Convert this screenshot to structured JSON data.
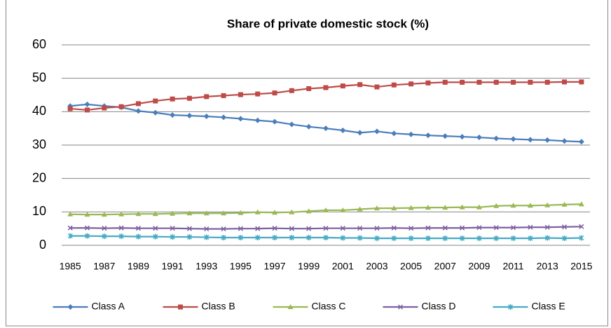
{
  "chart_data": {
    "type": "line",
    "title": "Share of private domestic stock (%)",
    "x": [
      1985,
      1986,
      1987,
      1988,
      1989,
      1990,
      1991,
      1992,
      1993,
      1994,
      1995,
      1996,
      1997,
      1998,
      1999,
      2000,
      2001,
      2002,
      2003,
      2004,
      2005,
      2006,
      2007,
      2008,
      2009,
      2010,
      2011,
      2012,
      2013,
      2014,
      2015
    ],
    "xlim": [
      1984.5,
      2015.5
    ],
    "xticks": [
      1985,
      1987,
      1989,
      1991,
      1993,
      1995,
      1997,
      1999,
      2001,
      2003,
      2005,
      2007,
      2009,
      2011,
      2013,
      2015
    ],
    "ylim": [
      0,
      60
    ],
    "yticks": [
      0,
      10,
      20,
      30,
      40,
      50,
      60
    ],
    "grid": true,
    "legend": "bottom",
    "series": [
      {
        "name": "Class A",
        "color": "#4a7ebb",
        "marker": "diamond",
        "values": [
          41.7,
          42.2,
          41.7,
          41.3,
          40.2,
          39.7,
          39.0,
          38.8,
          38.6,
          38.3,
          37.9,
          37.4,
          37.0,
          36.2,
          35.5,
          35.0,
          34.4,
          33.7,
          34.1,
          33.5,
          33.2,
          32.9,
          32.7,
          32.5,
          32.3,
          32.0,
          31.8,
          31.6,
          31.5,
          31.2,
          31.0
        ]
      },
      {
        "name": "Class B",
        "color": "#be4b48",
        "marker": "square",
        "values": [
          40.9,
          40.5,
          41.1,
          41.5,
          42.4,
          43.2,
          43.8,
          44.0,
          44.5,
          44.8,
          45.1,
          45.3,
          45.6,
          46.3,
          46.9,
          47.2,
          47.7,
          48.1,
          47.4,
          48.0,
          48.3,
          48.6,
          48.8,
          48.8,
          48.8,
          48.8,
          48.8,
          48.8,
          48.8,
          48.9,
          48.9
        ]
      },
      {
        "name": "Class C",
        "color": "#98b954",
        "marker": "triangle",
        "values": [
          9.3,
          9.2,
          9.2,
          9.3,
          9.4,
          9.4,
          9.5,
          9.6,
          9.6,
          9.6,
          9.7,
          9.9,
          9.8,
          9.9,
          10.2,
          10.5,
          10.5,
          10.8,
          11.1,
          11.1,
          11.2,
          11.3,
          11.3,
          11.4,
          11.4,
          11.8,
          11.9,
          11.9,
          12.0,
          12.2,
          12.3
        ]
      },
      {
        "name": "Class D",
        "color": "#7d60a0",
        "marker": "x",
        "values": [
          5.2,
          5.2,
          5.1,
          5.2,
          5.1,
          5.1,
          5.1,
          5.0,
          4.9,
          4.9,
          5.0,
          5.0,
          5.1,
          5.0,
          5.0,
          5.1,
          5.1,
          5.1,
          5.1,
          5.2,
          5.1,
          5.2,
          5.2,
          5.2,
          5.3,
          5.3,
          5.3,
          5.4,
          5.4,
          5.5,
          5.6
        ]
      },
      {
        "name": "Class E",
        "color": "#46aac5",
        "marker": "star",
        "values": [
          2.8,
          2.8,
          2.7,
          2.7,
          2.6,
          2.6,
          2.5,
          2.5,
          2.4,
          2.3,
          2.3,
          2.3,
          2.3,
          2.3,
          2.3,
          2.3,
          2.2,
          2.2,
          2.1,
          2.1,
          2.1,
          2.1,
          2.1,
          2.1,
          2.1,
          2.1,
          2.1,
          2.1,
          2.2,
          2.1,
          2.2
        ]
      }
    ]
  }
}
